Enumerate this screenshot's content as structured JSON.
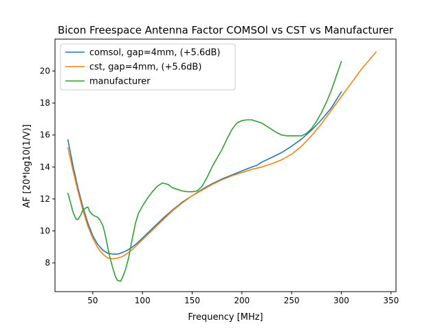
{
  "chart_data": {
    "type": "line",
    "title": "Bicon Freespace Antenna Factor COMSOl vs CST vs Manufacturer",
    "xlabel": "Frequency [MHz]",
    "ylabel": "AF [20*log10(1/V)]",
    "xlim": [
      12,
      355
    ],
    "ylim": [
      6.2,
      22.0
    ],
    "xticks": [
      50,
      100,
      150,
      200,
      250,
      300,
      350
    ],
    "yticks": [
      8,
      10,
      12,
      14,
      16,
      18,
      20
    ],
    "grid": false,
    "legend": "top-left",
    "series": [
      {
        "name": "comsol, gap=4mm, (+5.6dB)",
        "color": "#1f77b4",
        "x": [
          25,
          30,
          35,
          40,
          45,
          50,
          55,
          60,
          65,
          70,
          75,
          80,
          85,
          90,
          95,
          100,
          110,
          120,
          130,
          140,
          150,
          160,
          170,
          180,
          190,
          200,
          210,
          215,
          220,
          230,
          240,
          250,
          260,
          270,
          280,
          290,
          300
        ],
        "y": [
          15.7,
          14.1,
          12.7,
          11.5,
          10.5,
          9.7,
          9.15,
          8.8,
          8.6,
          8.55,
          8.55,
          8.65,
          8.8,
          9.0,
          9.25,
          9.55,
          10.15,
          10.75,
          11.3,
          11.8,
          12.2,
          12.6,
          12.95,
          13.25,
          13.5,
          13.75,
          14.0,
          14.1,
          14.3,
          14.6,
          14.9,
          15.3,
          15.75,
          16.3,
          16.95,
          17.7,
          18.7
        ]
      },
      {
        "name": "cst, gap=4mm, (+5.6dB)",
        "color": "#ff7f0e",
        "x": [
          25,
          30,
          35,
          40,
          45,
          50,
          55,
          60,
          65,
          70,
          75,
          80,
          85,
          90,
          95,
          100,
          110,
          120,
          130,
          140,
          150,
          160,
          170,
          180,
          190,
          200,
          210,
          220,
          230,
          240,
          250,
          260,
          270,
          280,
          290,
          300,
          310,
          320,
          335
        ],
        "y": [
          15.2,
          13.8,
          12.5,
          11.3,
          10.3,
          9.55,
          8.95,
          8.55,
          8.3,
          8.25,
          8.3,
          8.4,
          8.6,
          8.85,
          9.15,
          9.45,
          10.05,
          10.65,
          11.25,
          11.75,
          12.2,
          12.55,
          12.9,
          13.2,
          13.45,
          13.65,
          13.85,
          14.0,
          14.2,
          14.45,
          14.8,
          15.3,
          15.95,
          16.7,
          17.55,
          18.4,
          19.25,
          20.1,
          21.2
        ]
      },
      {
        "name": "manufacturer",
        "color": "#2ca02c",
        "x": [
          25,
          27,
          30,
          33,
          35,
          38,
          40,
          42,
          45,
          47,
          50,
          53,
          55,
          57,
          60,
          62,
          65,
          67,
          70,
          73,
          75,
          78,
          80,
          83,
          86,
          90,
          93,
          96,
          100,
          105,
          110,
          115,
          120,
          123,
          126,
          130,
          135,
          140,
          145,
          150,
          155,
          160,
          165,
          170,
          175,
          180,
          185,
          190,
          195,
          200,
          205,
          210,
          212,
          215,
          220,
          225,
          230,
          235,
          240,
          245,
          250,
          255,
          260,
          265,
          270,
          275,
          280,
          285,
          290,
          295,
          300
        ],
        "y": [
          12.35,
          11.9,
          11.2,
          10.75,
          10.7,
          11.0,
          11.3,
          11.4,
          11.5,
          11.2,
          11.0,
          10.9,
          10.85,
          10.7,
          10.35,
          9.9,
          9.0,
          8.4,
          7.7,
          7.1,
          6.9,
          6.85,
          7.1,
          7.6,
          8.3,
          9.6,
          10.5,
          11.1,
          11.55,
          12.05,
          12.45,
          12.8,
          13.0,
          12.95,
          12.9,
          12.7,
          12.6,
          12.5,
          12.45,
          12.45,
          12.5,
          12.8,
          13.35,
          14.0,
          14.55,
          15.1,
          15.75,
          16.35,
          16.75,
          16.9,
          16.95,
          16.95,
          16.9,
          16.85,
          16.75,
          16.55,
          16.35,
          16.15,
          16.0,
          15.95,
          15.95,
          15.95,
          15.95,
          16.1,
          16.4,
          16.85,
          17.4,
          18.05,
          18.8,
          19.7,
          20.6
        ]
      }
    ]
  }
}
